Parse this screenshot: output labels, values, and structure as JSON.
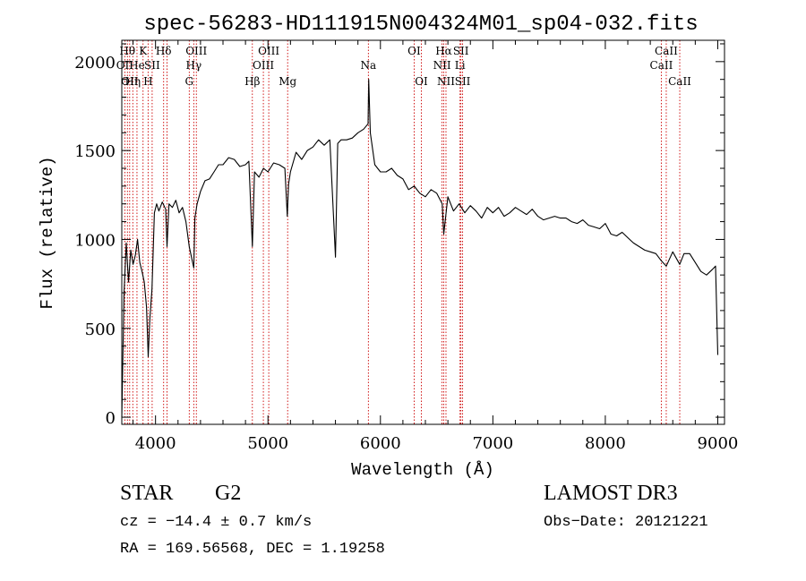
{
  "chart_data": {
    "type": "line",
    "title": "spec-56283-HD111915N004324M01_sp04-032.fits",
    "xlabel": "Wavelength (Å)",
    "ylabel": "Flux (relative)",
    "xlim": [
      3700,
      9060
    ],
    "ylim": [
      -40,
      2120
    ],
    "xticks": [
      4000,
      5000,
      6000,
      7000,
      8000,
      9000
    ],
    "yticks": [
      0,
      500,
      1000,
      1500,
      2000
    ],
    "grid": false,
    "line_color": "#000000",
    "marker_color": "#cc0000",
    "series": [
      {
        "x": [
          3700,
          3720,
          3740,
          3760,
          3780,
          3800,
          3820,
          3840,
          3860,
          3880,
          3900,
          3920,
          3935,
          3950,
          3968,
          3990,
          4010,
          4030,
          4060,
          4090,
          4102,
          4120,
          4150,
          4180,
          4210,
          4240,
          4270,
          4300,
          4320,
          4340,
          4350,
          4370,
          4400,
          4440,
          4480,
          4520,
          4560,
          4600,
          4650,
          4700,
          4750,
          4800,
          4830,
          4861,
          4880,
          4920,
          4960,
          5000,
          5050,
          5100,
          5150,
          5172,
          5183,
          5200,
          5250,
          5300,
          5350,
          5400,
          5450,
          5500,
          5550,
          5600,
          5620,
          5650,
          5700,
          5750,
          5800,
          5850,
          5890,
          5896,
          5910,
          5950,
          6000,
          6050,
          6100,
          6150,
          6200,
          6250,
          6300,
          6350,
          6400,
          6450,
          6500,
          6550,
          6563,
          6600,
          6650,
          6700,
          6750,
          6800,
          6850,
          6900,
          6950,
          7000,
          7050,
          7100,
          7150,
          7200,
          7250,
          7300,
          7350,
          7400,
          7450,
          7500,
          7550,
          7600,
          7650,
          7700,
          7750,
          7800,
          7850,
          7900,
          7950,
          8000,
          8050,
          8100,
          8150,
          8200,
          8250,
          8300,
          8350,
          8400,
          8450,
          8498,
          8542,
          8600,
          8662,
          8700,
          8750,
          8800,
          8850,
          8900,
          8950,
          8980,
          9000
        ],
        "y": [
          0,
          700,
          980,
          760,
          940,
          860,
          910,
          1000,
          870,
          820,
          760,
          620,
          340,
          560,
          720,
          1150,
          1200,
          1160,
          1210,
          1170,
          960,
          1200,
          1180,
          1220,
          1150,
          1180,
          1100,
          960,
          900,
          840,
          1120,
          1200,
          1270,
          1330,
          1340,
          1380,
          1420,
          1420,
          1460,
          1450,
          1410,
          1420,
          1440,
          960,
          1380,
          1350,
          1400,
          1380,
          1430,
          1420,
          1400,
          1130,
          1310,
          1380,
          1490,
          1450,
          1500,
          1520,
          1560,
          1530,
          1560,
          900,
          1540,
          1560,
          1560,
          1570,
          1600,
          1620,
          1650,
          1900,
          1600,
          1420,
          1380,
          1380,
          1400,
          1360,
          1340,
          1280,
          1300,
          1260,
          1240,
          1280,
          1260,
          1200,
          1030,
          1240,
          1160,
          1200,
          1150,
          1190,
          1160,
          1120,
          1180,
          1150,
          1180,
          1130,
          1150,
          1180,
          1160,
          1140,
          1170,
          1130,
          1110,
          1120,
          1130,
          1120,
          1120,
          1100,
          1090,
          1110,
          1080,
          1070,
          1060,
          1090,
          1030,
          1020,
          1040,
          1010,
          980,
          960,
          940,
          930,
          920,
          880,
          850,
          930,
          860,
          920,
          920,
          870,
          820,
          800,
          830,
          850,
          350
        ]
      }
    ],
    "line_markers": [
      {
        "wavelength": 3727,
        "label": "OII",
        "row": 2
      },
      {
        "wavelength": 3750,
        "label": "Hθ",
        "row": 1
      },
      {
        "wavelength": 3770,
        "label": "OII",
        "row": 3
      },
      {
        "wavelength": 3798,
        "label": "Hη",
        "row": 3
      },
      {
        "wavelength": 3835,
        "label": "He",
        "row": 2
      },
      {
        "wavelength": 3889,
        "label": "K",
        "row": 1
      },
      {
        "wavelength": 3934,
        "label": "H",
        "row": 3
      },
      {
        "wavelength": 3970,
        "label": "SII",
        "row": 2
      },
      {
        "wavelength": 4072,
        "label": "Hδ",
        "row": 1
      },
      {
        "wavelength": 4102,
        "label": "",
        "row": 0
      },
      {
        "wavelength": 4300,
        "label": "G",
        "row": 3
      },
      {
        "wavelength": 4340,
        "label": "Hγ",
        "row": 2
      },
      {
        "wavelength": 4363,
        "label": "OIII",
        "row": 1
      },
      {
        "wavelength": 4861,
        "label": "Hβ",
        "row": 3
      },
      {
        "wavelength": 4959,
        "label": "OIII",
        "row": 2
      },
      {
        "wavelength": 5007,
        "label": "OIII",
        "row": 1
      },
      {
        "wavelength": 5175,
        "label": "Mg",
        "row": 3
      },
      {
        "wavelength": 5893,
        "label": "Na",
        "row": 2
      },
      {
        "wavelength": 6300,
        "label": "OI",
        "row": 1
      },
      {
        "wavelength": 6364,
        "label": "OI",
        "row": 3
      },
      {
        "wavelength": 6548,
        "label": "NII",
        "row": 2
      },
      {
        "wavelength": 6563,
        "label": "Hα",
        "row": 1
      },
      {
        "wavelength": 6583,
        "label": "NII",
        "row": 3
      },
      {
        "wavelength": 6708,
        "label": "Li",
        "row": 2
      },
      {
        "wavelength": 6716,
        "label": "SII",
        "row": 1
      },
      {
        "wavelength": 6731,
        "label": "SII",
        "row": 3
      },
      {
        "wavelength": 8498,
        "label": "CaII",
        "row": 2
      },
      {
        "wavelength": 8542,
        "label": "CaII",
        "row": 1
      },
      {
        "wavelength": 8662,
        "label": "CaII",
        "row": 3
      }
    ]
  },
  "info": {
    "class": "STAR",
    "subclass": "G2",
    "survey": "LAMOST DR3",
    "cz": "cz = −14.4 ± 0.7 km/s",
    "obs_date": "Obs−Date: 20121221",
    "radec": "RA = 169.56568, DEC =    1.19258"
  }
}
